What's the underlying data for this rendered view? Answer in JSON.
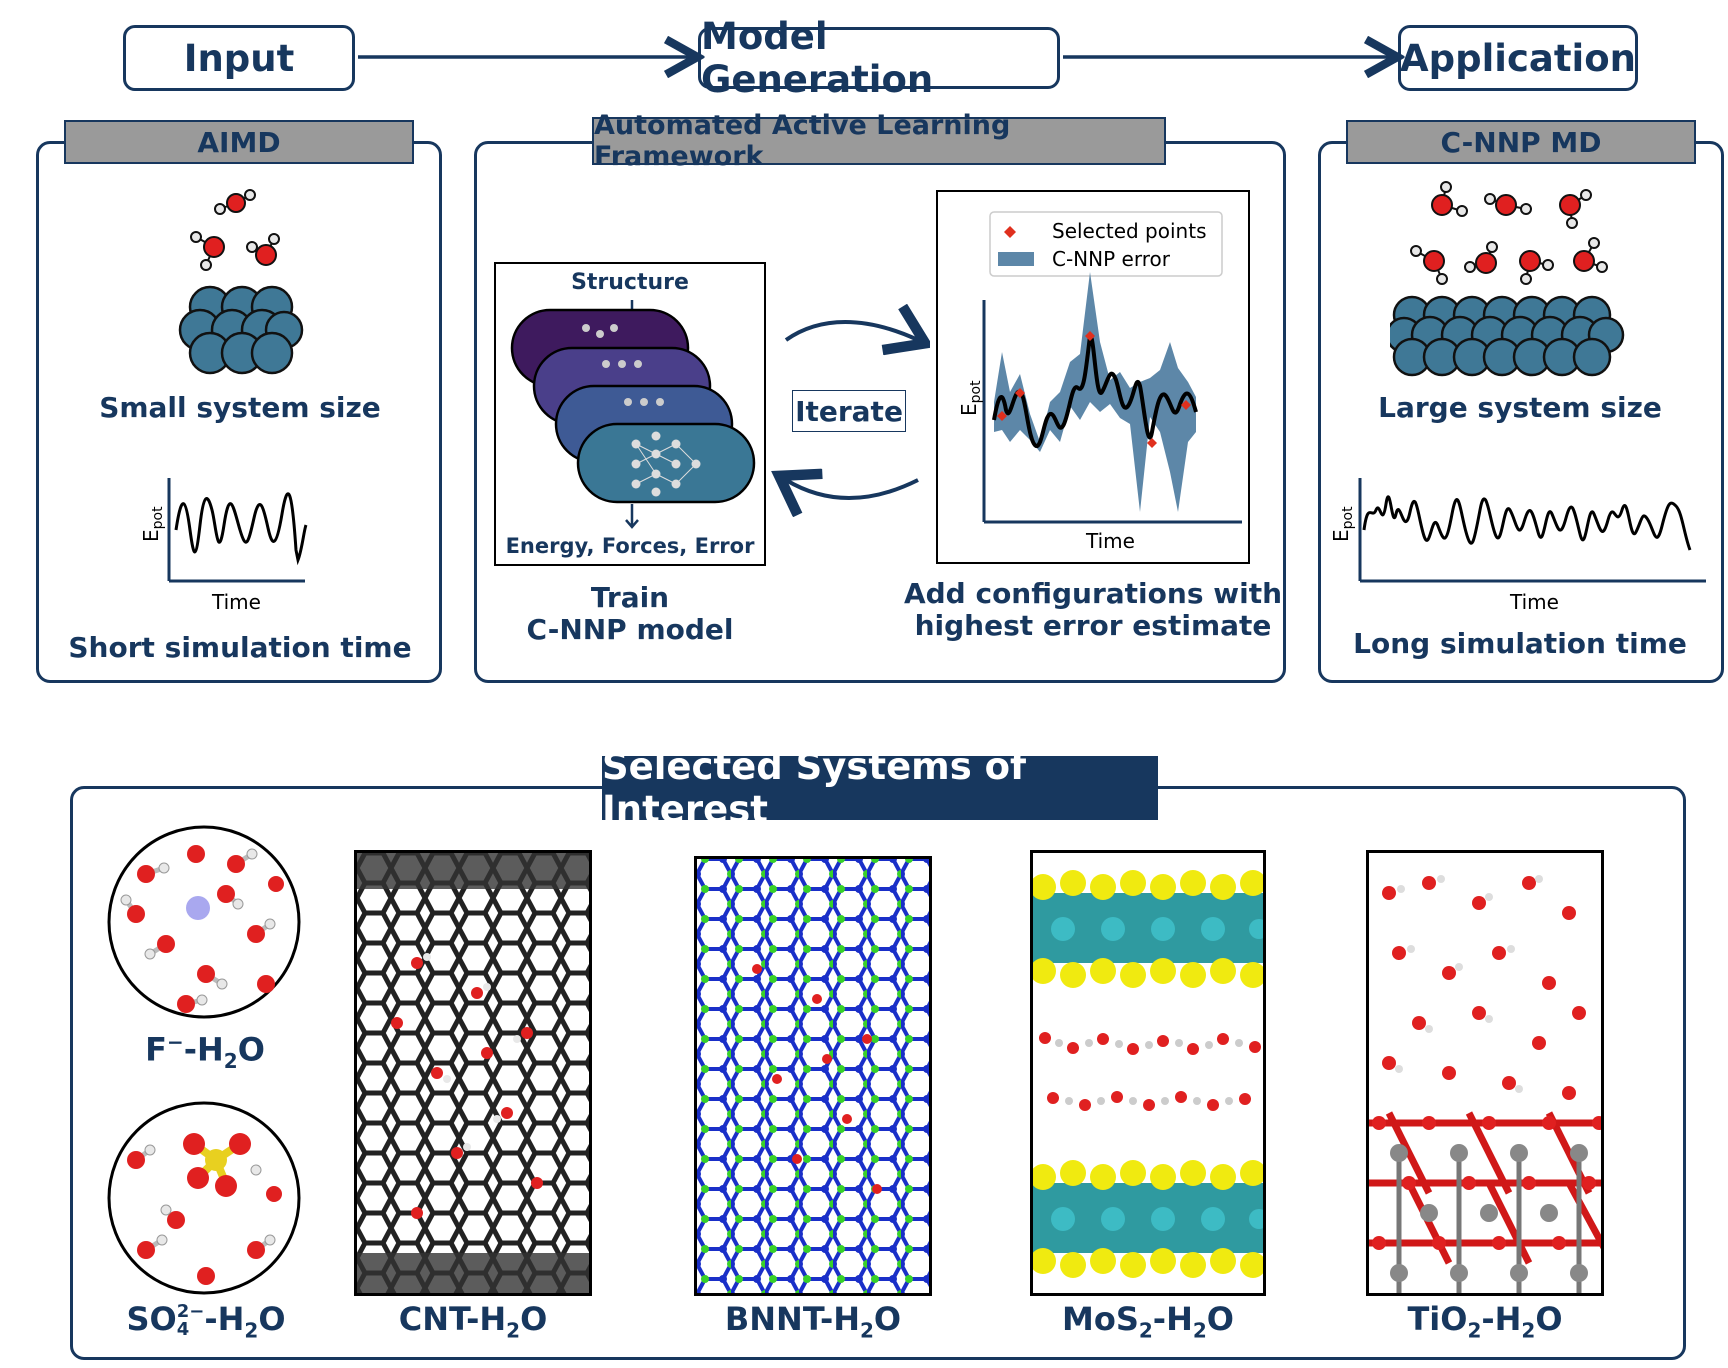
{
  "flow": {
    "input": "Input",
    "model_generation": "Model Generation",
    "application": "Application"
  },
  "left_panel": {
    "header": "AIMD",
    "system_caption": "Small system size",
    "time_caption": "Short simulation time",
    "xlabel": "Time",
    "ylabel": "E",
    "ylabel_sub": "pot"
  },
  "middle_panel": {
    "header": "Automated Active Learning Framework",
    "nn_top": "Structure",
    "nn_bottom": "Energy, Forces, Error",
    "train_caption_1": "Train",
    "train_caption_2": "C-NNP model",
    "iterate": "Iterate",
    "add_caption_1": "Add configurations with",
    "add_caption_2": "highest error estimate",
    "legend_selected": "Selected points",
    "legend_error": "C-NNP error",
    "xlabel": "Time",
    "ylabel": "E",
    "ylabel_sub": "pot"
  },
  "right_panel": {
    "header": "C-NNP MD",
    "system_caption": "Large system size",
    "time_caption": "Long simulation time",
    "xlabel": "Time",
    "ylabel": "E",
    "ylabel_sub": "pot"
  },
  "bottom": {
    "title": "Selected Systems of Interest",
    "systems": {
      "f": {
        "a": "F",
        "sup": "−",
        "b": "-H",
        "sub": "2",
        "c": "O"
      },
      "so4": {
        "a": "SO",
        "sup": "2−",
        "sub": "4",
        "b": "-H",
        "sub2": "2",
        "c": "O"
      },
      "cnt": {
        "a": "CNT-H",
        "sub": "2",
        "b": "O"
      },
      "bnnt": {
        "a": "BNNT-H",
        "sub": "2",
        "b": "O"
      },
      "mos2": {
        "a": "MoS",
        "sub": "2",
        "b": "-H",
        "sub2": "2",
        "c": "O"
      },
      "tio2": {
        "a": "TiO",
        "sub": "2",
        "b": "-H",
        "sub2": "2",
        "c": "O"
      }
    }
  },
  "colors": {
    "navy": "#17375e",
    "gray_label": "#9a9a9a",
    "slab": "#3f7896",
    "oxygen": "#e02020",
    "hydrogen": "#e8e8e8",
    "error_band": "#5d87a8",
    "selected_point": "#e0301e"
  }
}
